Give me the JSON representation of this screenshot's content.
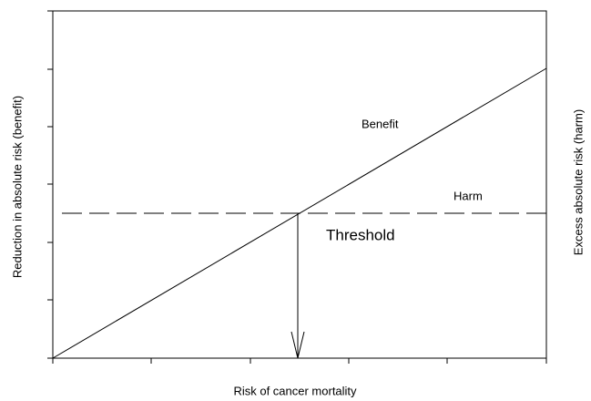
{
  "axes": {
    "x_label": "Risk of cancer mortality",
    "y_label": "Reduction in absolute risk (benefit)",
    "y2_label": "Excess absolute risk (harm)"
  },
  "labels": {
    "benefit": "Benefit",
    "harm": "Harm",
    "threshold": "Threshold"
  }
}
